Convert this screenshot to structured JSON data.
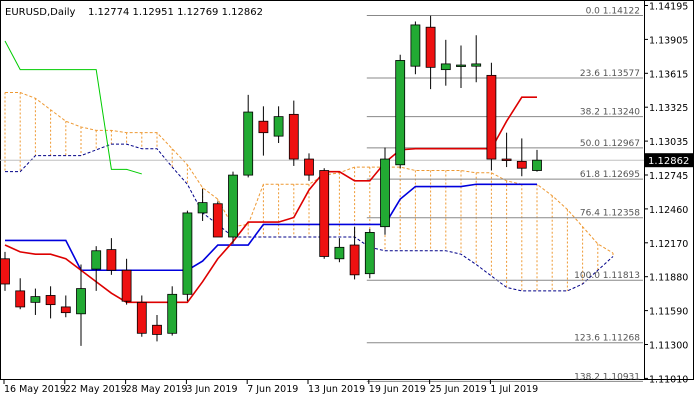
{
  "header": {
    "symbol": "EURUSD,Daily",
    "ohlc": "1.12774 1.12951 1.12769 1.12862"
  },
  "colors": {
    "bull": "#22aa33",
    "bear": "#ee1111",
    "kijun": "#0000dd",
    "tenkan": "#dd0000",
    "chikou": "#00cc00",
    "cloud": "#ee9933",
    "fib": "#888888",
    "price_box": "#000000"
  },
  "current_price_label": "1.12862",
  "chart_data": {
    "type": "candlestick",
    "x_tick_labels": [
      "16 May 2019",
      "22 May 2019",
      "28 May 2019",
      "3 Jun 2019",
      "7 Jun 2019",
      "13 Jun 2019",
      "19 Jun 2019",
      "25 Jun 2019",
      "1 Jul 2019"
    ],
    "y_tick_labels": [
      "1.14195",
      "1.13905",
      "1.13615",
      "1.13325",
      "1.13035",
      "1.12745",
      "1.12460",
      "1.12170",
      "1.11880",
      "1.11590",
      "1.11300",
      "1.11010"
    ],
    "ylim": [
      1.1096,
      1.1424
    ],
    "grid": false,
    "candles": [
      {
        "o": 1.12,
        "h": 1.1206,
        "l": 1.1172,
        "c": 1.1178
      },
      {
        "o": 1.1172,
        "h": 1.1183,
        "l": 1.1156,
        "c": 1.1158
      },
      {
        "o": 1.1162,
        "h": 1.1174,
        "l": 1.1151,
        "c": 1.1167
      },
      {
        "o": 1.1168,
        "h": 1.1176,
        "l": 1.1148,
        "c": 1.116
      },
      {
        "o": 1.1158,
        "h": 1.1168,
        "l": 1.1149,
        "c": 1.1153
      },
      {
        "o": 1.1152,
        "h": 1.1195,
        "l": 1.1124,
        "c": 1.1174
      },
      {
        "o": 1.1191,
        "h": 1.1211,
        "l": 1.1172,
        "c": 1.1207
      },
      {
        "o": 1.1208,
        "h": 1.1218,
        "l": 1.1186,
        "c": 1.119
      },
      {
        "o": 1.119,
        "h": 1.12,
        "l": 1.116,
        "c": 1.1163
      },
      {
        "o": 1.1162,
        "h": 1.1168,
        "l": 1.1132,
        "c": 1.1135
      },
      {
        "o": 1.1142,
        "h": 1.1151,
        "l": 1.1128,
        "c": 1.1134
      },
      {
        "o": 1.1135,
        "h": 1.1176,
        "l": 1.1133,
        "c": 1.1169
      },
      {
        "o": 1.1169,
        "h": 1.1242,
        "l": 1.1163,
        "c": 1.124
      },
      {
        "o": 1.124,
        "h": 1.1261,
        "l": 1.1233,
        "c": 1.1249
      },
      {
        "o": 1.1248,
        "h": 1.125,
        "l": 1.1219,
        "c": 1.1219
      },
      {
        "o": 1.1219,
        "h": 1.1276,
        "l": 1.1213,
        "c": 1.1273
      },
      {
        "o": 1.1273,
        "h": 1.1343,
        "l": 1.1271,
        "c": 1.1328
      },
      {
        "o": 1.132,
        "h": 1.1333,
        "l": 1.129,
        "c": 1.131
      },
      {
        "o": 1.1307,
        "h": 1.1333,
        "l": 1.1301,
        "c": 1.1324
      },
      {
        "o": 1.1326,
        "h": 1.1338,
        "l": 1.1281,
        "c": 1.1287
      },
      {
        "o": 1.1287,
        "h": 1.1292,
        "l": 1.1268,
        "c": 1.1273
      },
      {
        "o": 1.1277,
        "h": 1.1279,
        "l": 1.12,
        "c": 1.1202
      },
      {
        "o": 1.12,
        "h": 1.1218,
        "l": 1.1197,
        "c": 1.121
      },
      {
        "o": 1.1212,
        "h": 1.1228,
        "l": 1.1182,
        "c": 1.1186
      },
      {
        "o": 1.1187,
        "h": 1.1226,
        "l": 1.1183,
        "c": 1.1223
      },
      {
        "o": 1.1228,
        "h": 1.1297,
        "l": 1.1221,
        "c": 1.1287
      },
      {
        "o": 1.1282,
        "h": 1.1378,
        "l": 1.1279,
        "c": 1.1373
      },
      {
        "o": 1.1368,
        "h": 1.1407,
        "l": 1.1361,
        "c": 1.1404
      },
      {
        "o": 1.1402,
        "h": 1.1412,
        "l": 1.1348,
        "c": 1.1367
      },
      {
        "o": 1.1365,
        "h": 1.1391,
        "l": 1.1351,
        "c": 1.137
      },
      {
        "o": 1.1369,
        "h": 1.1386,
        "l": 1.1349,
        "c": 1.1369
      },
      {
        "o": 1.1368,
        "h": 1.1395,
        "l": 1.1354,
        "c": 1.137
      },
      {
        "o": 1.136,
        "h": 1.1371,
        "l": 1.1277,
        "c": 1.1287
      },
      {
        "o": 1.1287,
        "h": 1.131,
        "l": 1.128,
        "c": 1.1286
      },
      {
        "o": 1.1285,
        "h": 1.1305,
        "l": 1.1272,
        "c": 1.1279
      },
      {
        "o": 1.1277,
        "h": 1.1295,
        "l": 1.1276,
        "c": 1.1286
      }
    ],
    "series": [
      {
        "values": [
          1.1216,
          1.1216,
          1.1216,
          1.1216,
          1.1216,
          1.119,
          1.119,
          1.119,
          1.119,
          1.119,
          1.119,
          1.119,
          1.119,
          1.1198,
          1.1212,
          1.1212,
          1.1212,
          1.123,
          1.123,
          1.123,
          1.123,
          1.123,
          1.123,
          1.123,
          1.123,
          1.123,
          1.1252,
          1.1263,
          1.1263,
          1.1263,
          1.1263,
          1.1265,
          1.1265,
          1.1265,
          1.1265,
          1.1265
        ]
      },
      {
        "values": [
          1.1212,
          1.1206,
          1.1204,
          1.1204,
          1.12,
          1.119,
          1.118,
          1.117,
          1.1162,
          1.1162,
          1.1162,
          1.1162,
          1.1162,
          1.118,
          1.12,
          1.1215,
          1.1232,
          1.1232,
          1.1232,
          1.1236,
          1.126,
          1.1276,
          1.1276,
          1.1268,
          1.1268,
          1.1284,
          1.1295,
          1.1296,
          1.1296,
          1.1296,
          1.1296,
          1.1296,
          1.1296,
          1.132,
          1.1341,
          1.1341
        ]
      },
      {
        "values": [
          1.139,
          1.1365,
          1.1365,
          1.1365,
          1.1365,
          1.1365,
          1.1365,
          1.1278,
          1.1278,
          1.1274
        ]
      }
    ],
    "cloud_upper": [
      1.1345,
      1.1345,
      1.134,
      1.133,
      1.132,
      1.1315,
      1.1312,
      1.1312,
      1.131,
      1.131,
      1.131,
      1.1296,
      1.1282,
      1.1262,
      1.1252,
      1.1228,
      1.123,
      1.1265,
      1.1265,
      1.1265,
      1.1265,
      1.1273,
      1.1275,
      1.128,
      1.128,
      1.128,
      1.128,
      1.1277,
      1.1277,
      1.1277,
      1.1277,
      1.1275,
      1.1275,
      1.1268,
      1.1265,
      1.1265,
      1.1255,
      1.1243,
      1.1228,
      1.1213,
      1.1205
    ],
    "cloud_lower": [
      1.1276,
      1.1276,
      1.129,
      1.129,
      1.129,
      1.129,
      1.1295,
      1.13,
      1.13,
      1.1296,
      1.1296,
      1.128,
      1.1265,
      1.124,
      1.123,
      1.1219,
      1.1219,
      1.1219,
      1.1219,
      1.1219,
      1.1219,
      1.1219,
      1.1219,
      1.1219,
      1.121,
      1.1207,
      1.1207,
      1.1207,
      1.1207,
      1.1207,
      1.1204,
      1.1195,
      1.1185,
      1.1175,
      1.1172,
      1.1172,
      1.1172,
      1.1172,
      1.1178,
      1.119,
      1.1202
    ],
    "fibonacci": [
      {
        "label": "0.0 1.14122",
        "price": 1.14122
      },
      {
        "label": "23.6 1.13577",
        "price": 1.13577
      },
      {
        "label": "38.2 1.13240",
        "price": 1.1324
      },
      {
        "label": "50.0 1.12967",
        "price": 1.12967
      },
      {
        "label": "61.8 1.12695",
        "price": 1.12695
      },
      {
        "label": "76.4 1.12358",
        "price": 1.12358
      },
      {
        "label": "100.0 1.11813",
        "price": 1.11813
      },
      {
        "label": "123.6 1.11268",
        "price": 1.11268
      },
      {
        "label": "138.2 1.10931",
        "price": 1.10931
      }
    ]
  }
}
